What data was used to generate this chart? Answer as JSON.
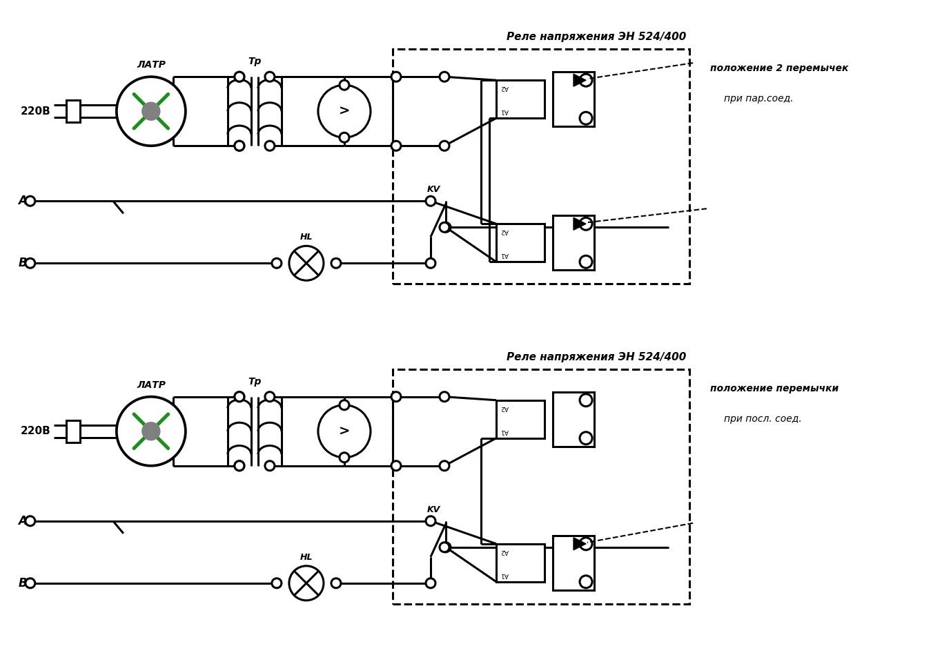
{
  "bg_color": "#ffffff",
  "lc": "#000000",
  "gc": "#228B22",
  "gray": "#808080",
  "lw": 2.2,
  "lw_thin": 1.5,
  "figsize": [
    13.78,
    9.46
  ],
  "dpi": 100,
  "label_220v": "220В",
  "label_latr": "ЛАТР",
  "label_tr": "Тр",
  "label_A": "А",
  "label_B": "В",
  "label_HL": "HL",
  "label_KV": "KV",
  "title_relay": "Реле напряжения ЭН 524/400",
  "ann1_l1": "положение 2 перемычек",
  "ann1_l2": "при пар.соед.",
  "ann2_l1": "положение перемычки",
  "ann2_l2": "при посл. соед."
}
